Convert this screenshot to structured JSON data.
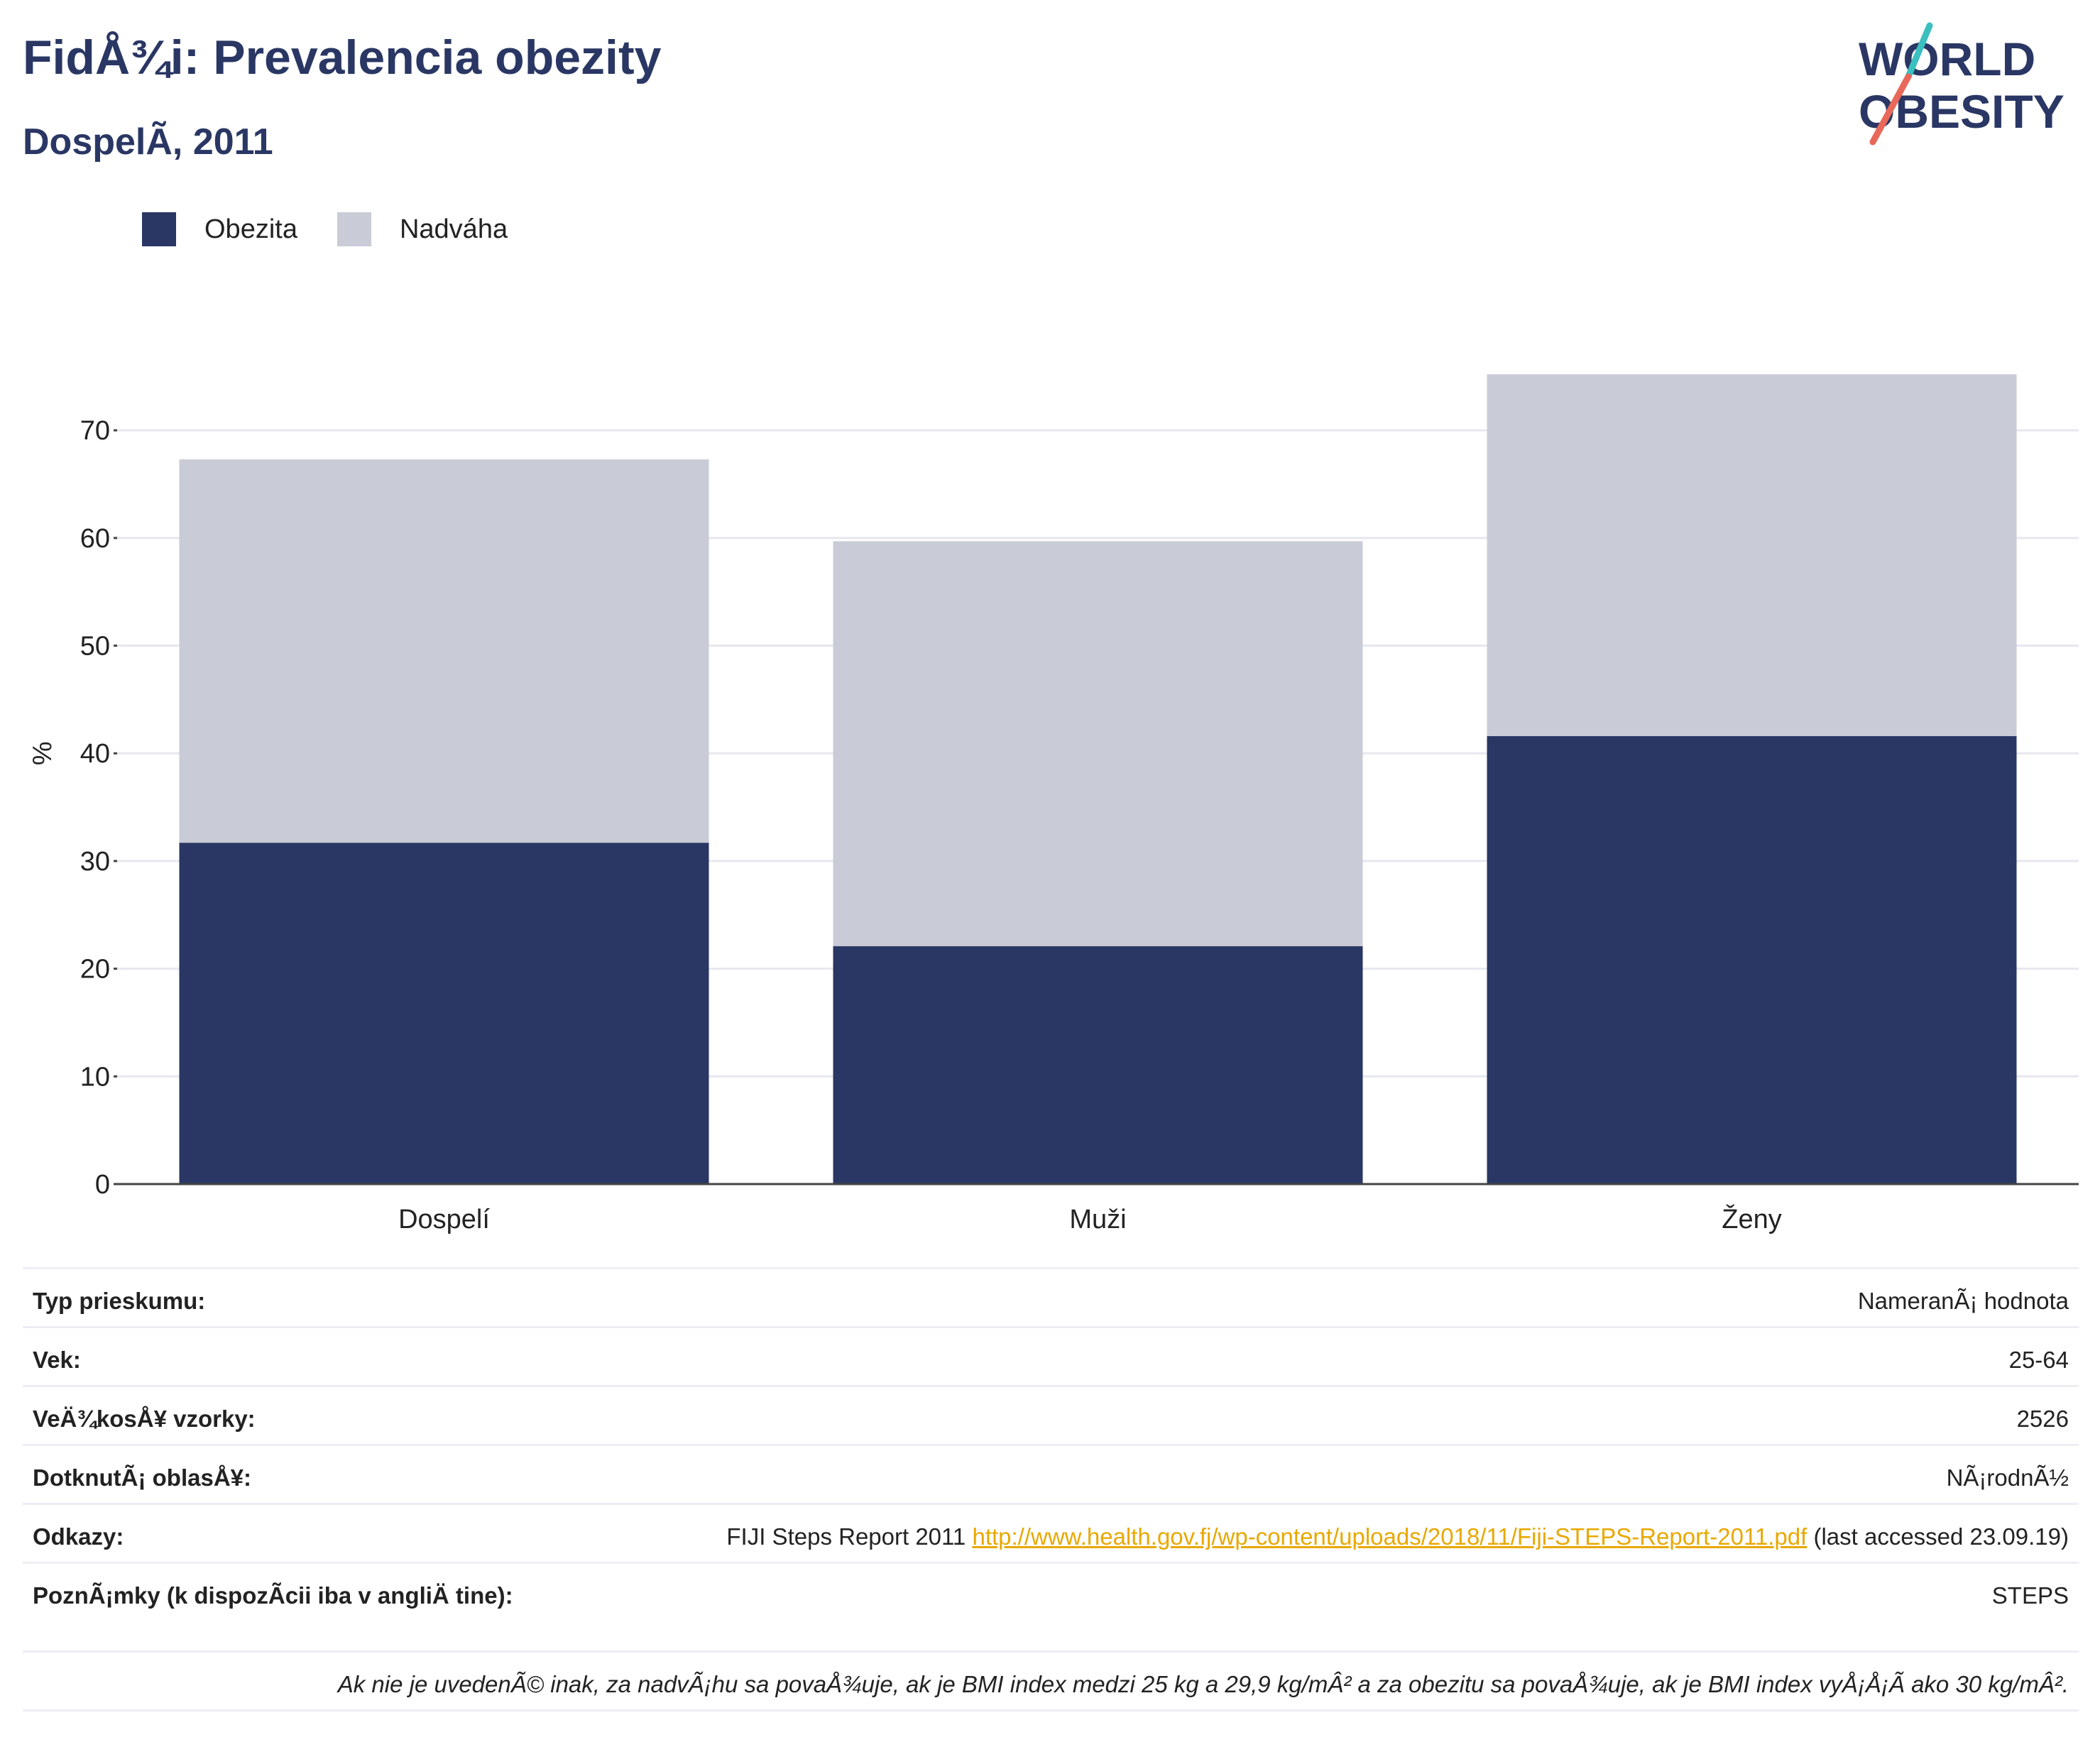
{
  "header": {
    "title": "FidÅ¾i: Prevalencia obezity",
    "subtitle": "DospelÃ­, 2011"
  },
  "logo": {
    "line1": "WORLD",
    "line2": "OBESITY"
  },
  "colors": {
    "obesity": "#2a3764",
    "overweight": "#c9cbd6",
    "link": "#e8a800",
    "logo_teal": "#3bbfbf",
    "logo_coral": "#e8685a"
  },
  "legend": [
    {
      "label": "Obezita",
      "color": "#2a3764"
    },
    {
      "label": "Nadváha",
      "color": "#c9cbd6"
    }
  ],
  "chart_data": {
    "type": "bar",
    "stacked": true,
    "categories": [
      "Dospelí",
      "Muži",
      "Ženy"
    ],
    "series": [
      {
        "name": "Obezita",
        "values": [
          31.7,
          22.1,
          41.6
        ]
      },
      {
        "name": "Nadváha",
        "values": [
          35.6,
          37.6,
          33.6
        ]
      }
    ],
    "ylabel": "%",
    "yticks": [
      0,
      10,
      20,
      30,
      40,
      50,
      60,
      70
    ],
    "ylim": [
      0,
      77
    ],
    "grid": true,
    "legend_position": "top-left"
  },
  "info": {
    "rows": [
      {
        "key": "Typ prieskumu:",
        "value": "NameranÃ¡ hodnota"
      },
      {
        "key": "Vek:",
        "value": "25-64"
      },
      {
        "key": "VeÄ¾kosÅ¥ vzorky:",
        "value": "2526"
      },
      {
        "key": "DotknutÃ¡ oblasÅ¥:",
        "value": "NÃ¡rodnÃ½"
      }
    ],
    "references": {
      "key": "Odkazy:",
      "prefix": "FIJI Steps Report 2011 ",
      "link": "http://www.health.gov.fj/wp-content/uploads/2018/11/Fiji-STEPS-Report-2011.pdf",
      "suffix": " (last accessed 23.09.19)"
    },
    "notes": {
      "key": "PoznÃ¡mky (k dispozÃ­cii iba v angliÄ tine):",
      "value": "STEPS"
    },
    "footnote": "Ak nie je uvedenÃ© inak, za nadvÃ¡hu sa povaÅ¾uje, ak je BMI index medzi 25 kg a 29,9 kg/mÂ² a za obezitu sa povaÅ¾uje, ak je BMI index vyÅ¡Å¡Ã­ ako 30 kg/mÂ²."
  }
}
